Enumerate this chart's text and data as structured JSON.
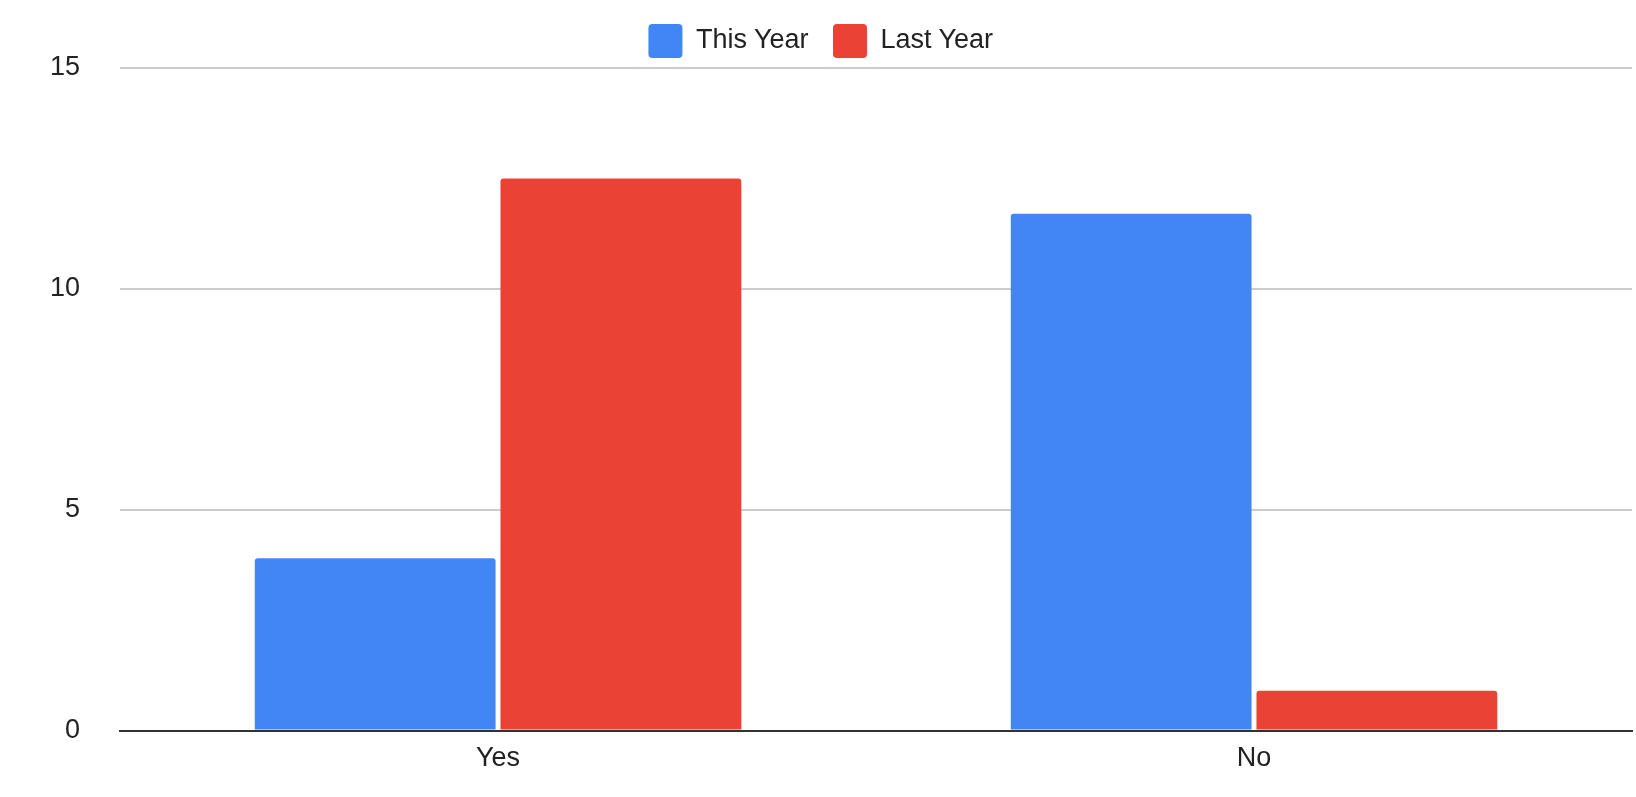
{
  "chart_data": {
    "type": "bar",
    "categories": [
      "Yes",
      "No"
    ],
    "series": [
      {
        "name": "This Year",
        "color": "#4285f4",
        "values": [
          3.9,
          11.7
        ]
      },
      {
        "name": "Last Year",
        "color": "#ea4335",
        "values": [
          12.5,
          0.9
        ]
      }
    ],
    "ylim": [
      0,
      15
    ],
    "yticks": [
      0,
      5,
      10,
      15
    ],
    "grid": "y",
    "legend": "top"
  }
}
